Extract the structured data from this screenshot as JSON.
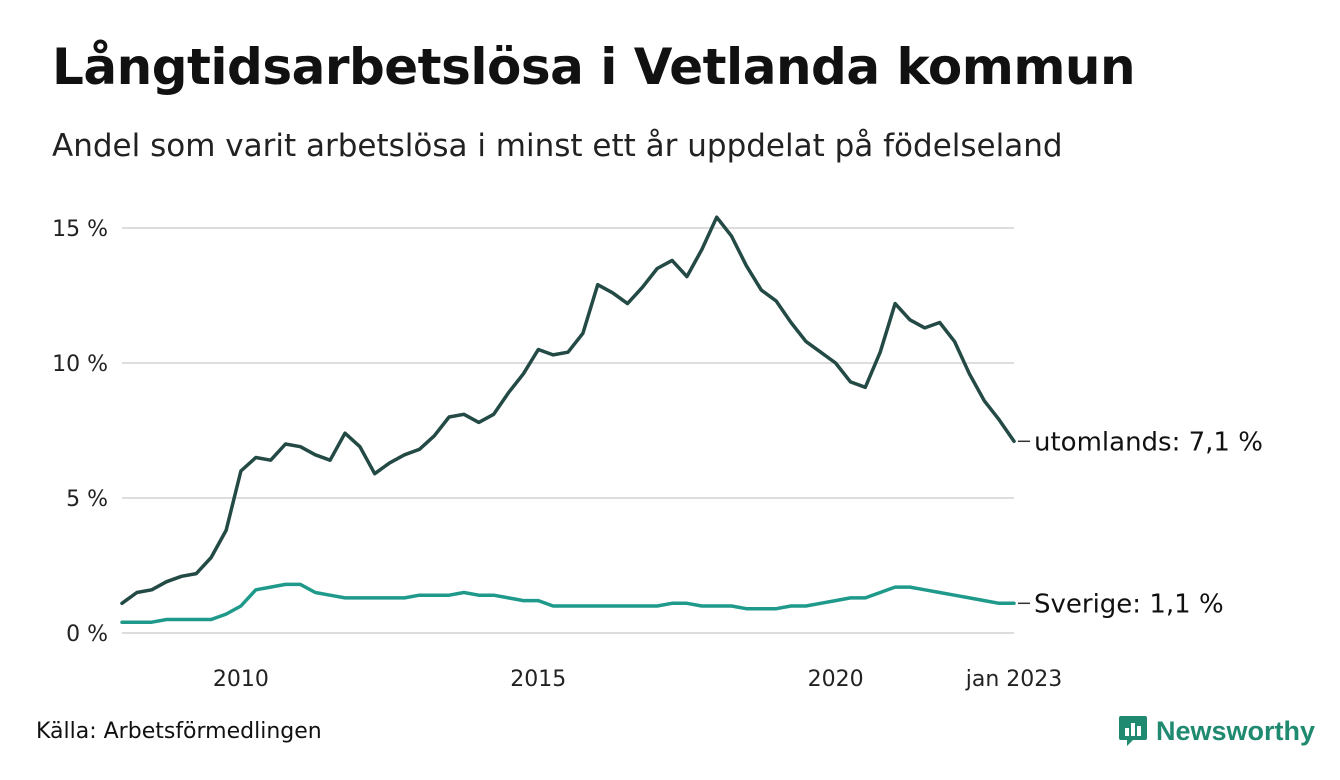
{
  "title": "Långtidsarbetslösa i Vetlanda kommun",
  "subtitle": "Andel som varit arbetslösa i minst ett år uppdelat på födelseland",
  "source": "Källa: Arbetsförmedlingen",
  "brand": {
    "name": "Newsworthy",
    "icon": "newsworthy-logo-icon",
    "color": "#1f8a70"
  },
  "chart_data": {
    "type": "line",
    "title": "Långtidsarbetslösa i Vetlanda kommun",
    "subtitle": "Andel som varit arbetslösa i minst ett år uppdelat på födelseland",
    "xlabel": "",
    "ylabel": "",
    "xlim": [
      "2008-01",
      "2023-01"
    ],
    "ylim": [
      0,
      15
    ],
    "grid": true,
    "legend": "end-of-line labels",
    "y_ticks": [
      {
        "value": 0,
        "label": "0 %"
      },
      {
        "value": 5,
        "label": "5 %"
      },
      {
        "value": 10,
        "label": "10 %"
      },
      {
        "value": 15,
        "label": "15 %"
      }
    ],
    "x_ticks": [
      {
        "value": "2010-01",
        "label": "2010"
      },
      {
        "value": "2015-01",
        "label": "2015"
      },
      {
        "value": "2020-01",
        "label": "2020"
      },
      {
        "value": "2023-01",
        "label": "jan 2023"
      }
    ],
    "x": [
      "2008-01",
      "2008-04",
      "2008-07",
      "2008-10",
      "2009-01",
      "2009-04",
      "2009-07",
      "2009-10",
      "2010-01",
      "2010-04",
      "2010-07",
      "2010-10",
      "2011-01",
      "2011-04",
      "2011-07",
      "2011-10",
      "2012-01",
      "2012-04",
      "2012-07",
      "2012-10",
      "2013-01",
      "2013-04",
      "2013-07",
      "2013-10",
      "2014-01",
      "2014-04",
      "2014-07",
      "2014-10",
      "2015-01",
      "2015-04",
      "2015-07",
      "2015-10",
      "2016-01",
      "2016-04",
      "2016-07",
      "2016-10",
      "2017-01",
      "2017-04",
      "2017-07",
      "2017-10",
      "2018-01",
      "2018-04",
      "2018-07",
      "2018-10",
      "2019-01",
      "2019-04",
      "2019-07",
      "2019-10",
      "2020-01",
      "2020-04",
      "2020-07",
      "2020-10",
      "2021-01",
      "2021-04",
      "2021-07",
      "2021-10",
      "2022-01",
      "2022-04",
      "2022-07",
      "2022-10",
      "2023-01"
    ],
    "series": [
      {
        "name": "utomlands",
        "end_label": "utomlands: 7,1 %",
        "color": "#234a45",
        "values": [
          1.1,
          1.5,
          1.6,
          1.9,
          2.1,
          2.2,
          2.8,
          3.8,
          6.0,
          6.5,
          6.4,
          7.0,
          6.9,
          6.6,
          6.4,
          7.4,
          6.9,
          5.9,
          6.3,
          6.6,
          6.8,
          7.3,
          8.0,
          8.1,
          7.8,
          8.1,
          8.9,
          9.6,
          10.5,
          10.3,
          10.4,
          11.1,
          12.9,
          12.6,
          12.2,
          12.8,
          13.5,
          13.8,
          13.2,
          14.2,
          15.4,
          14.7,
          13.6,
          12.7,
          12.3,
          11.5,
          10.8,
          10.4,
          10.0,
          9.3,
          9.1,
          10.4,
          12.2,
          11.6,
          11.3,
          11.5,
          10.8,
          9.6,
          8.6,
          7.9,
          7.1
        ]
      },
      {
        "name": "Sverige",
        "end_label": "Sverige: 1,1 %",
        "color": "#1f9a8a",
        "values": [
          0.4,
          0.4,
          0.4,
          0.5,
          0.5,
          0.5,
          0.5,
          0.7,
          1.0,
          1.6,
          1.7,
          1.8,
          1.8,
          1.5,
          1.4,
          1.3,
          1.3,
          1.3,
          1.3,
          1.3,
          1.4,
          1.4,
          1.4,
          1.5,
          1.4,
          1.4,
          1.3,
          1.2,
          1.2,
          1.0,
          1.0,
          1.0,
          1.0,
          1.0,
          1.0,
          1.0,
          1.0,
          1.1,
          1.1,
          1.0,
          1.0,
          1.0,
          0.9,
          0.9,
          0.9,
          1.0,
          1.0,
          1.1,
          1.2,
          1.3,
          1.3,
          1.5,
          1.7,
          1.7,
          1.6,
          1.5,
          1.4,
          1.3,
          1.2,
          1.1,
          1.1
        ]
      }
    ]
  }
}
